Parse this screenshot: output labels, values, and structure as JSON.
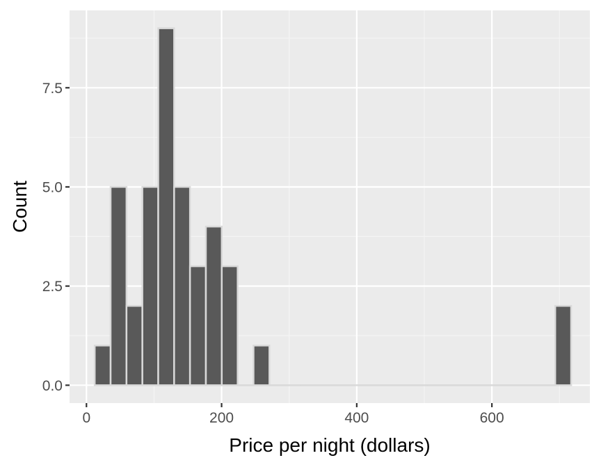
{
  "chart_data": {
    "type": "bar",
    "title": "",
    "xlabel": "Price per night (dollars)",
    "ylabel": "Count",
    "xlim": [
      -25,
      745
    ],
    "ylim": [
      -0.45,
      9.45
    ],
    "x_ticks": [
      0,
      200,
      400,
      600
    ],
    "x_tick_labels": [
      "0",
      "200",
      "400",
      "600"
    ],
    "y_ticks": [
      0,
      2.5,
      5,
      7.5
    ],
    "y_tick_labels": [
      "0.0",
      "2.5",
      "5.0",
      "7.5"
    ],
    "bin_width": 23.5,
    "bins": [
      {
        "x": 24,
        "count": 1
      },
      {
        "x": 47.5,
        "count": 5
      },
      {
        "x": 71,
        "count": 2
      },
      {
        "x": 94.5,
        "count": 5
      },
      {
        "x": 118,
        "count": 9
      },
      {
        "x": 141.5,
        "count": 5
      },
      {
        "x": 165,
        "count": 3
      },
      {
        "x": 188.5,
        "count": 4
      },
      {
        "x": 212,
        "count": 3
      },
      {
        "x": 235.5,
        "count": 0
      },
      {
        "x": 259,
        "count": 1
      },
      {
        "x": 282.5,
        "count": 0
      },
      {
        "x": 306,
        "count": 0
      },
      {
        "x": 329.5,
        "count": 0
      },
      {
        "x": 353,
        "count": 0
      },
      {
        "x": 376.5,
        "count": 0
      },
      {
        "x": 400,
        "count": 0
      },
      {
        "x": 423.5,
        "count": 0
      },
      {
        "x": 447,
        "count": 0
      },
      {
        "x": 470.5,
        "count": 0
      },
      {
        "x": 494,
        "count": 0
      },
      {
        "x": 517.5,
        "count": 0
      },
      {
        "x": 541,
        "count": 0
      },
      {
        "x": 564.5,
        "count": 0
      },
      {
        "x": 588,
        "count": 0
      },
      {
        "x": 611.5,
        "count": 0
      },
      {
        "x": 635,
        "count": 0
      },
      {
        "x": 658.5,
        "count": 0
      },
      {
        "x": 682,
        "count": 0
      },
      {
        "x": 705.5,
        "count": 2
      }
    ],
    "colors": {
      "panel": "#ebebeb",
      "grid_major": "#ffffff",
      "grid_minor": "#f5f5f5",
      "bar_fill": "#595959",
      "bar_outline": "#d9d9d9",
      "tick": "#333333"
    }
  }
}
